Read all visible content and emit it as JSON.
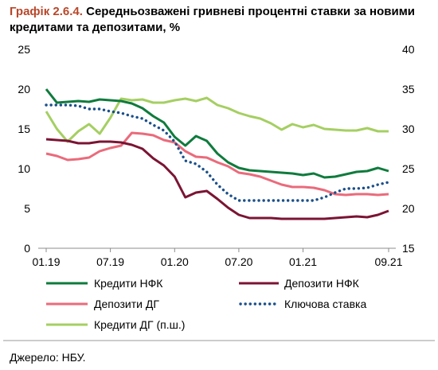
{
  "source": "Джерело: НБУ.",
  "colors": {
    "figure_label": "#b8472a",
    "axis": "#8c8c8c",
    "separator": "#9a9a9a"
  },
  "chart_data": {
    "type": "line",
    "figure_label": "Графік 2.6.4.",
    "title": "Середньозважені гривневі процентні ставки за новими кредитами та депозитами, %",
    "grid": false,
    "legend": "bottom",
    "x": [
      "01.19",
      "02.19",
      "03.19",
      "04.19",
      "05.19",
      "06.19",
      "07.19",
      "08.19",
      "09.19",
      "10.19",
      "11.19",
      "12.19",
      "01.20",
      "02.20",
      "03.20",
      "04.20",
      "05.20",
      "06.20",
      "07.20",
      "08.20",
      "09.20",
      "10.20",
      "11.20",
      "12.20",
      "01.21",
      "02.21",
      "03.21",
      "04.21",
      "05.21",
      "06.21",
      "07.21",
      "08.21",
      "09.21"
    ],
    "xticks": [
      "01.19",
      "07.19",
      "01.20",
      "07.20",
      "01.21",
      "09.21"
    ],
    "y_left": {
      "ylim": [
        0,
        25
      ],
      "ticks": [
        0,
        5,
        10,
        15,
        20,
        25
      ]
    },
    "y_right": {
      "ylim": [
        15,
        40
      ],
      "ticks": [
        15,
        20,
        25,
        30,
        35,
        40
      ]
    },
    "series": [
      {
        "name": "Кредити НФК",
        "axis": "left",
        "color": "#0f7b3d",
        "style": "solid",
        "values": [
          20.0,
          18.3,
          18.4,
          18.5,
          18.4,
          18.7,
          18.6,
          18.5,
          18.2,
          17.6,
          16.6,
          15.8,
          14.0,
          12.9,
          14.1,
          13.5,
          11.9,
          10.8,
          10.1,
          9.8,
          9.7,
          9.6,
          9.5,
          9.4,
          9.2,
          9.4,
          8.9,
          9.0,
          9.3,
          9.6,
          9.7,
          10.1,
          9.7
        ]
      },
      {
        "name": "Депозити НФК",
        "axis": "left",
        "color": "#7b1434",
        "style": "solid",
        "values": [
          13.7,
          13.6,
          13.5,
          13.2,
          13.2,
          13.4,
          13.4,
          13.3,
          13.0,
          12.5,
          11.3,
          10.4,
          9.0,
          6.4,
          7.0,
          7.2,
          6.2,
          5.1,
          4.2,
          3.8,
          3.8,
          3.8,
          3.7,
          3.7,
          3.7,
          3.7,
          3.7,
          3.8,
          3.9,
          4.0,
          3.9,
          4.2,
          4.7
        ]
      },
      {
        "name": "Депозити ДГ",
        "axis": "left",
        "color": "#ea6b7b",
        "style": "solid",
        "values": [
          11.9,
          11.6,
          11.1,
          11.2,
          11.4,
          12.2,
          12.6,
          12.9,
          14.5,
          14.4,
          14.2,
          13.6,
          13.3,
          12.2,
          11.5,
          11.4,
          10.8,
          10.3,
          9.5,
          9.3,
          9.0,
          8.5,
          8.0,
          7.7,
          7.7,
          7.6,
          7.3,
          6.8,
          6.7,
          6.8,
          6.8,
          6.7,
          6.8
        ]
      },
      {
        "name": "Ключова ставка",
        "axis": "left",
        "color": "#1a4f8a",
        "style": "dotted",
        "values": [
          18.0,
          18.0,
          18.0,
          17.9,
          17.5,
          17.5,
          17.2,
          17.0,
          16.6,
          16.3,
          15.5,
          14.8,
          13.4,
          11.0,
          10.6,
          9.6,
          8.0,
          6.8,
          6.0,
          6.0,
          6.0,
          6.0,
          6.0,
          6.0,
          6.0,
          6.0,
          6.4,
          7.0,
          7.5,
          7.5,
          7.6,
          8.0,
          8.3
        ]
      },
      {
        "name": "Кредити ДГ (п.ш.)",
        "axis": "right",
        "color": "#a5cf62",
        "style": "solid",
        "values": [
          32.2,
          30.0,
          28.4,
          29.7,
          30.6,
          29.4,
          31.4,
          33.8,
          33.6,
          33.7,
          33.3,
          33.3,
          33.6,
          33.8,
          33.5,
          33.9,
          33.0,
          32.6,
          32.0,
          31.6,
          31.3,
          30.7,
          29.9,
          30.6,
          30.2,
          30.5,
          30.0,
          29.9,
          29.8,
          29.8,
          30.1,
          29.7,
          29.7
        ]
      }
    ]
  }
}
